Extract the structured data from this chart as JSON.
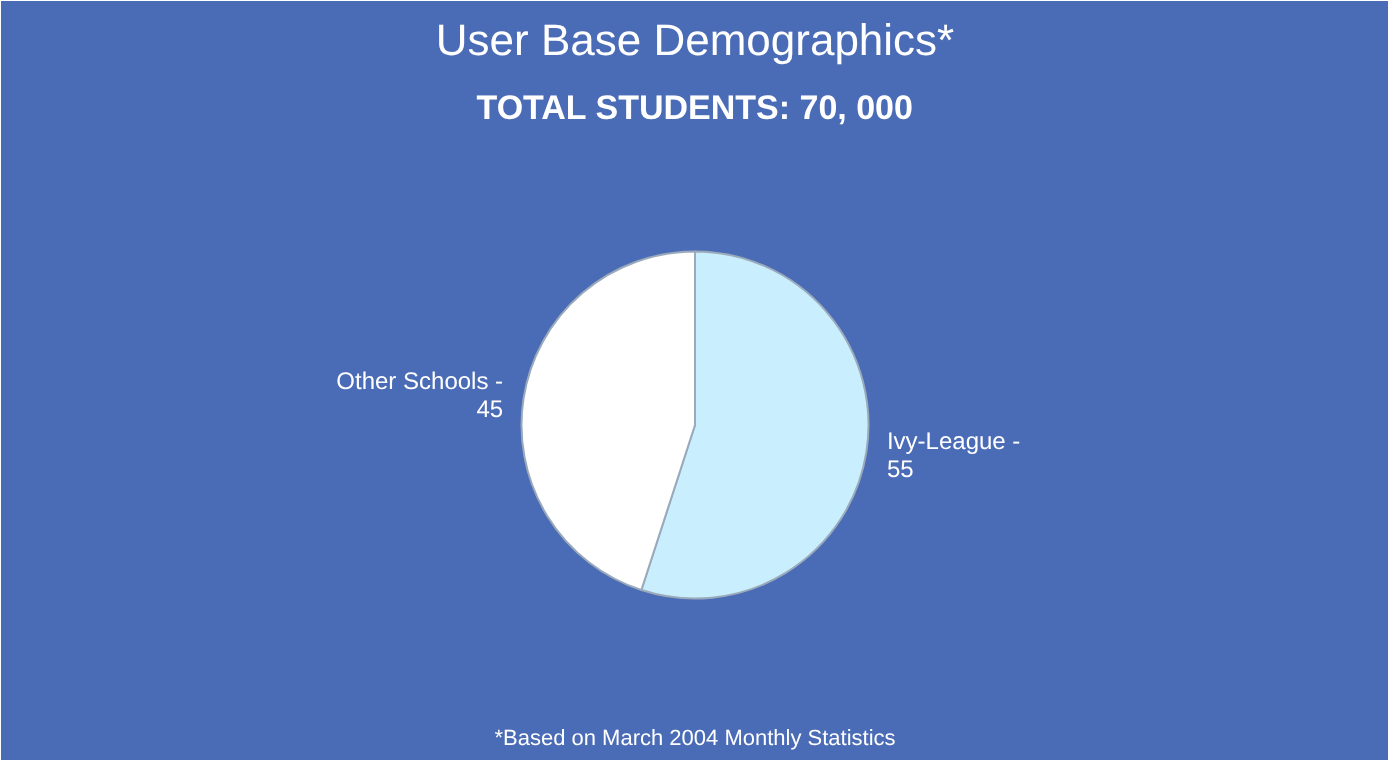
{
  "chart_data": {
    "type": "pie",
    "title": "User Base Demographics*",
    "subtitle": "TOTAL STUDENTS: 70, 000",
    "categories": [
      "Ivy-League -",
      "Other Schools -"
    ],
    "values": [
      55,
      45
    ],
    "colors": [
      "#c9efff",
      "#ffffff"
    ],
    "data_labels": true,
    "annotations": [
      "*Based on March 2004 Monthly Statistics"
    ]
  }
}
